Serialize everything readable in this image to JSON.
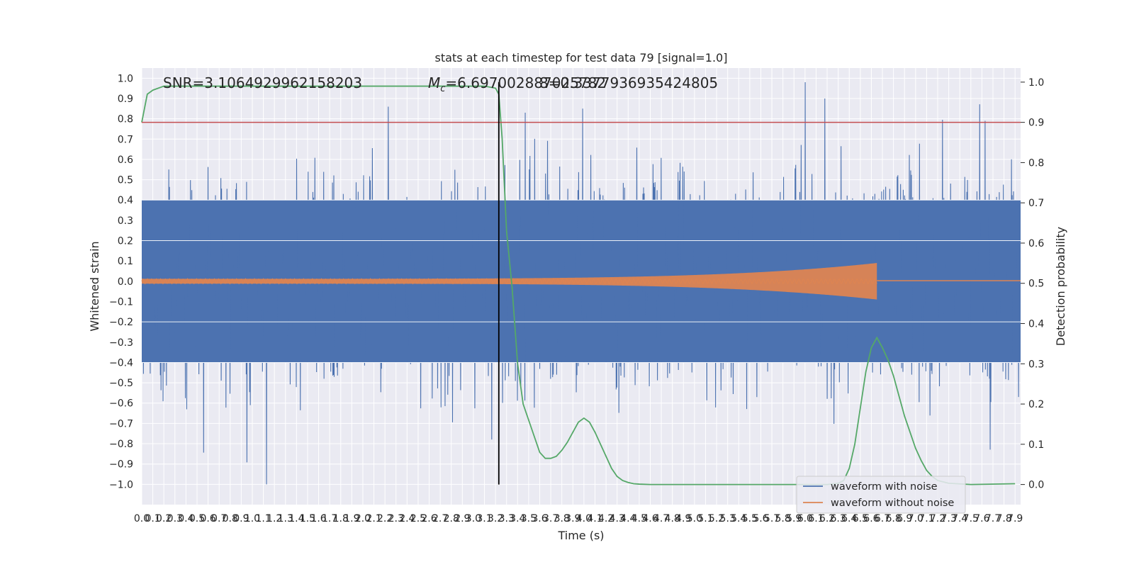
{
  "chart_data": {
    "type": "line",
    "title": "stats at each timestep for test data 79 [signal=1.0]",
    "xlabel": "Time (s)",
    "ylabel_left": "Whitened strain",
    "ylabel_right": "Detection probability",
    "xlim": [
      0.0,
      7.95
    ],
    "ylim_left": [
      -1.1,
      1.05
    ],
    "ylim_right": [
      -0.05,
      1.035
    ],
    "x_ticks": [
      "0.0",
      "0.1",
      "0.2",
      "0.3",
      "0.4",
      "0.5",
      "0.6",
      "0.7",
      "0.8",
      "0.9",
      "1.0",
      "1.1",
      "1.2",
      "1.3",
      "1.4",
      "1.5",
      "1.6",
      "1.7",
      "1.8",
      "1.9",
      "2.0",
      "2.1",
      "2.2",
      "2.3",
      "2.4",
      "2.5",
      "2.6",
      "2.7",
      "2.8",
      "2.9",
      "3.0",
      "3.1",
      "3.2",
      "3.3",
      "3.4",
      "3.5",
      "3.6",
      "3.7",
      "3.8",
      "3.9",
      "4.0",
      "4.1",
      "4.2",
      "4.3",
      "4.4",
      "4.5",
      "4.6",
      "4.7",
      "4.8",
      "4.9",
      "5.0",
      "5.1",
      "5.2",
      "5.3",
      "5.4",
      "5.5",
      "5.6",
      "5.7",
      "5.8",
      "5.9",
      "6.0",
      "6.1",
      "6.2",
      "6.3",
      "6.4",
      "6.5",
      "6.6",
      "6.7",
      "6.8",
      "6.9",
      "7.0",
      "7.1",
      "7.2",
      "7.3",
      "7.4",
      "7.5",
      "7.6",
      "7.7",
      "7.8",
      "7.9"
    ],
    "y_ticks_left": [
      "−1.0",
      "−0.9",
      "−0.8",
      "−0.7",
      "−0.6",
      "−0.5",
      "−0.4",
      "−0.3",
      "−0.2",
      "−0.1",
      "0.0",
      "0.1",
      "0.2",
      "0.3",
      "0.4",
      "0.5",
      "0.6",
      "0.7",
      "0.8",
      "0.9",
      "1.0"
    ],
    "y_ticks_right": [
      "0.0",
      "0.1",
      "0.2",
      "0.3",
      "0.4",
      "0.5",
      "0.6",
      "0.7",
      "0.8",
      "0.9",
      "1.0"
    ],
    "annotations": {
      "snr": "SNR=3.1064929962158203",
      "mc": "=6.697002887025782",
      "mc_symbol": "M",
      "mc_sub": "c",
      "overlap": "8=0.3377936935424805"
    },
    "threshold": 0.9,
    "vertical_marker_x": 3.23,
    "merger_time": 6.65,
    "series": [
      {
        "name": "waveform with noise",
        "color": "#4c72b0",
        "axis": "left",
        "style": "noise",
        "core_amplitude": 0.4,
        "peaks": [
          {
            "x": 1.13,
            "y": -1.0
          },
          {
            "x": 2.23,
            "y": 0.86
          },
          {
            "x": 3.47,
            "y": 0.83
          },
          {
            "x": 3.99,
            "y": 0.85
          },
          {
            "x": 6.0,
            "y": 0.98
          },
          {
            "x": 6.18,
            "y": 0.9
          },
          {
            "x": 7.63,
            "y": 0.79
          }
        ]
      },
      {
        "name": "waveform without noise",
        "color": "#dd8452",
        "axis": "left",
        "style": "chirp",
        "amplitude_start": 0.012,
        "amplitude_peak": 0.09,
        "merger_time": 6.65
      },
      {
        "name": "",
        "color": "#55a868",
        "axis": "right",
        "style": "line",
        "x": [
          0.0,
          0.05,
          0.1,
          0.2,
          0.5,
          1.0,
          2.0,
          3.0,
          3.1,
          3.2,
          3.23,
          3.26,
          3.3,
          3.35,
          3.4,
          3.45,
          3.5,
          3.55,
          3.6,
          3.65,
          3.7,
          3.75,
          3.8,
          3.85,
          3.9,
          3.95,
          4.0,
          4.05,
          4.1,
          4.15,
          4.2,
          4.25,
          4.3,
          4.35,
          4.4,
          4.45,
          4.5,
          4.6,
          4.8,
          5.5,
          6.0,
          6.2,
          6.3,
          6.35,
          6.4,
          6.45,
          6.5,
          6.55,
          6.6,
          6.65,
          6.7,
          6.75,
          6.8,
          6.85,
          6.9,
          6.95,
          7.0,
          7.05,
          7.1,
          7.15,
          7.2,
          7.3,
          7.5,
          7.9
        ],
        "y": [
          0.9,
          0.97,
          0.98,
          0.99,
          0.99,
          0.99,
          0.99,
          0.99,
          0.99,
          0.985,
          0.97,
          0.86,
          0.63,
          0.49,
          0.3,
          0.2,
          0.16,
          0.12,
          0.08,
          0.065,
          0.065,
          0.07,
          0.085,
          0.105,
          0.13,
          0.155,
          0.165,
          0.155,
          0.13,
          0.1,
          0.07,
          0.04,
          0.02,
          0.01,
          0.005,
          0.002,
          0.001,
          0.0,
          0.0,
          0.0,
          0.0,
          0.0,
          0.003,
          0.01,
          0.04,
          0.1,
          0.19,
          0.28,
          0.34,
          0.365,
          0.34,
          0.31,
          0.27,
          0.22,
          0.17,
          0.13,
          0.09,
          0.06,
          0.035,
          0.02,
          0.01,
          0.003,
          0.0,
          0.002
        ]
      },
      {
        "name": "",
        "color": "#c44e52",
        "axis": "right",
        "style": "hline",
        "y": 0.9
      }
    ],
    "legend": {
      "placement": "lower-right",
      "entries": [
        "waveform with noise",
        "waveform without noise"
      ]
    }
  }
}
